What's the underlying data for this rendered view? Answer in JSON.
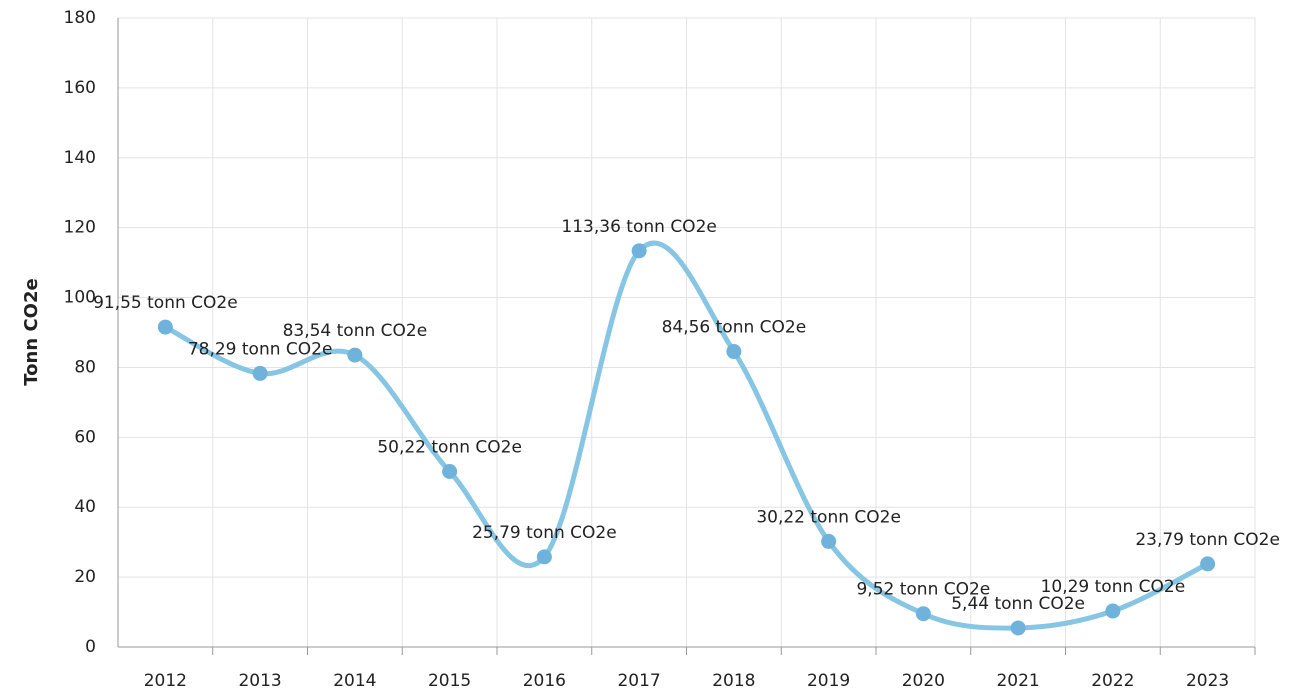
{
  "chart_data": {
    "type": "line",
    "y_label": "Tonn CO2e",
    "categories": [
      "2012",
      "2013",
      "2014",
      "2015",
      "2016",
      "2017",
      "2018",
      "2019",
      "2020",
      "2021",
      "2022",
      "2023"
    ],
    "series": [
      {
        "name": "Tonn CO2e",
        "color": "#86c5e3",
        "values": [
          91.55,
          78.29,
          83.54,
          50.22,
          25.79,
          113.36,
          84.56,
          30.22,
          9.52,
          5.44,
          10.29,
          23.79
        ],
        "value_labels": [
          "91,55 tonn CO2e",
          "78,29 tonn CO2e",
          "83,54 tonn CO2e",
          "50,22 tonn CO2e",
          "25,79 tonn CO2e",
          "113,36 tonn CO2e",
          "84,56 tonn CO2e",
          "30,22 tonn CO2e",
          "9,52 tonn CO2e",
          "5,44 tonn CO2e",
          "10,29 tonn CO2e",
          "23,79 tonn CO2e"
        ]
      }
    ],
    "ylim": [
      0,
      180
    ],
    "yticks": [
      0,
      20,
      40,
      60,
      80,
      100,
      120,
      140,
      160,
      180
    ],
    "grid": true
  }
}
